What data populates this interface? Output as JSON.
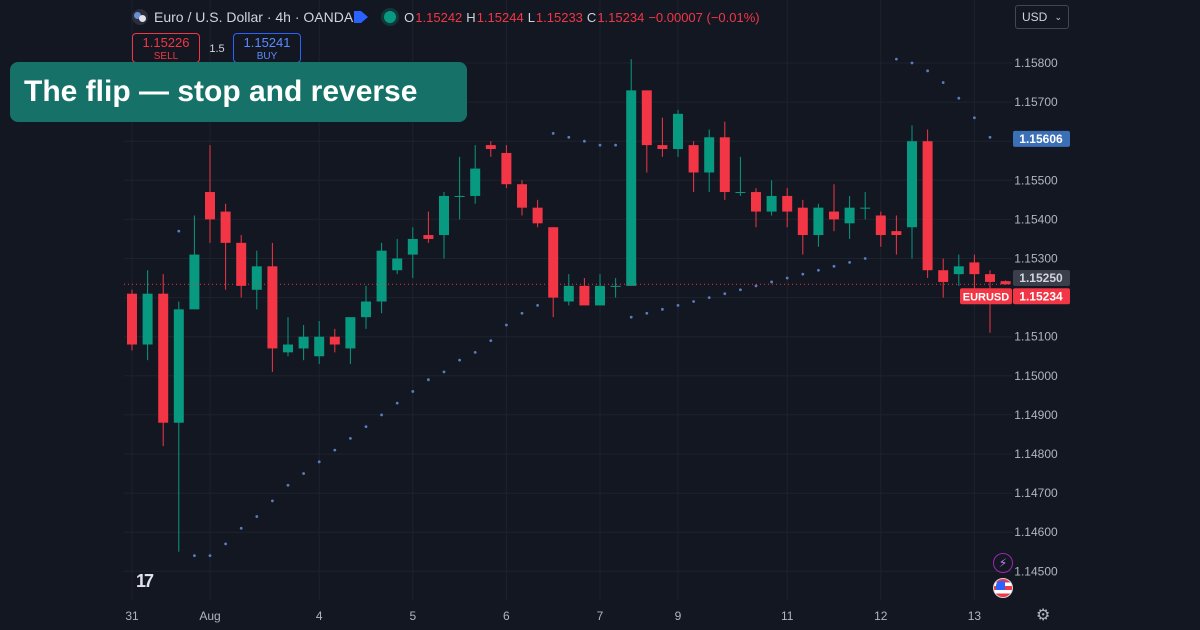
{
  "header": {
    "symbol": "Euro / U.S. Dollar · 4h · OANDA",
    "open_label": "O",
    "open": "1.15242",
    "high_label": "H",
    "high": "1.15244",
    "low_label": "L",
    "low": "1.15233",
    "close_label": "C",
    "close": "1.15234",
    "change": "−0.00007 (−0.01%)"
  },
  "currency_select": {
    "value": "USD"
  },
  "trade": {
    "sell_price": "1.15226",
    "sell_label": "SELL",
    "spread": "1.5",
    "buy_price": "1.15241",
    "buy_label": "BUY"
  },
  "overlay_title": "The flip  —  stop and reverse",
  "logo_text": "17",
  "colors": {
    "up": "#089981",
    "down": "#f23645",
    "background": "#131722",
    "sar": "#5b7dbd",
    "overlay": "#167268"
  },
  "chart_data": {
    "type": "candlestick",
    "title": "",
    "xlabel": "",
    "ylabel": "",
    "ylim": [
      1.1445,
      1.1583
    ],
    "y_ticks": [
      "1.14500",
      "1.14600",
      "1.14700",
      "1.14800",
      "1.14900",
      "1.15000",
      "1.15100",
      "1.15200",
      "1.15300",
      "1.15400",
      "1.15500",
      "1.15600",
      "1.15700",
      "1.15800"
    ],
    "x_tick_labels": [
      {
        "label": "31",
        "index": 0
      },
      {
        "label": "Aug",
        "index": 5
      },
      {
        "label": "4",
        "index": 12
      },
      {
        "label": "5",
        "index": 18
      },
      {
        "label": "6",
        "index": 24
      },
      {
        "label": "7",
        "index": 30
      },
      {
        "label": "9",
        "index": 35
      },
      {
        "label": "11",
        "index": 42
      },
      {
        "label": "12",
        "index": 48
      },
      {
        "label": "13",
        "index": 54
      }
    ],
    "grid": true,
    "candles": [
      {
        "o": 1.1521,
        "h": 1.1522,
        "l": 1.15065,
        "c": 1.1508
      },
      {
        "o": 1.1508,
        "h": 1.1527,
        "l": 1.1504,
        "c": 1.1521
      },
      {
        "o": 1.1521,
        "h": 1.1526,
        "l": 1.1482,
        "c": 1.1488
      },
      {
        "o": 1.1488,
        "h": 1.1519,
        "l": 1.1455,
        "c": 1.1517
      },
      {
        "o": 1.1517,
        "h": 1.1541,
        "l": 1.1517,
        "c": 1.1531
      },
      {
        "o": 1.1547,
        "h": 1.1559,
        "l": 1.1534,
        "c": 1.154
      },
      {
        "o": 1.1542,
        "h": 1.1544,
        "l": 1.1522,
        "c": 1.1534
      },
      {
        "o": 1.1534,
        "h": 1.1536,
        "l": 1.152,
        "c": 1.1523
      },
      {
        "o": 1.1522,
        "h": 1.1532,
        "l": 1.1517,
        "c": 1.1528
      },
      {
        "o": 1.1528,
        "h": 1.1534,
        "l": 1.1501,
        "c": 1.1507
      },
      {
        "o": 1.1506,
        "h": 1.1515,
        "l": 1.1505,
        "c": 1.1508
      },
      {
        "o": 1.1507,
        "h": 1.1513,
        "l": 1.1504,
        "c": 1.151
      },
      {
        "o": 1.1505,
        "h": 1.1514,
        "l": 1.1503,
        "c": 1.151
      },
      {
        "o": 1.151,
        "h": 1.1512,
        "l": 1.1506,
        "c": 1.1508
      },
      {
        "o": 1.1507,
        "h": 1.1514,
        "l": 1.1503,
        "c": 1.1515
      },
      {
        "o": 1.1515,
        "h": 1.1523,
        "l": 1.1512,
        "c": 1.1519
      },
      {
        "o": 1.1519,
        "h": 1.1534,
        "l": 1.1516,
        "c": 1.1532
      },
      {
        "o": 1.1527,
        "h": 1.1535,
        "l": 1.1526,
        "c": 1.153
      },
      {
        "o": 1.1531,
        "h": 1.1538,
        "l": 1.1525,
        "c": 1.1535
      },
      {
        "o": 1.1536,
        "h": 1.1542,
        "l": 1.1534,
        "c": 1.1535
      },
      {
        "o": 1.1536,
        "h": 1.1547,
        "l": 1.153,
        "c": 1.1546
      },
      {
        "o": 1.1546,
        "h": 1.1556,
        "l": 1.154,
        "c": 1.1546
      },
      {
        "o": 1.1546,
        "h": 1.1559,
        "l": 1.1544,
        "c": 1.1553
      },
      {
        "o": 1.1559,
        "h": 1.156,
        "l": 1.1556,
        "c": 1.1558
      },
      {
        "o": 1.1557,
        "h": 1.1559,
        "l": 1.1548,
        "c": 1.1549
      },
      {
        "o": 1.1549,
        "h": 1.155,
        "l": 1.1541,
        "c": 1.1543
      },
      {
        "o": 1.1543,
        "h": 1.1545,
        "l": 1.1538,
        "c": 1.1539
      },
      {
        "o": 1.1538,
        "h": 1.1538,
        "l": 1.1515,
        "c": 1.152
      },
      {
        "o": 1.1519,
        "h": 1.1526,
        "l": 1.1518,
        "c": 1.1523
      },
      {
        "o": 1.1523,
        "h": 1.1525,
        "l": 1.1518,
        "c": 1.1518
      },
      {
        "o": 1.1518,
        "h": 1.1526,
        "l": 1.1518,
        "c": 1.1523
      },
      {
        "o": 1.1523,
        "h": 1.1525,
        "l": 1.152,
        "c": 1.1523
      },
      {
        "o": 1.1523,
        "h": 1.1581,
        "l": 1.1523,
        "c": 1.1573
      },
      {
        "o": 1.1573,
        "h": 1.1573,
        "l": 1.1552,
        "c": 1.1559
      },
      {
        "o": 1.1559,
        "h": 1.1566,
        "l": 1.1556,
        "c": 1.1558
      },
      {
        "o": 1.1558,
        "h": 1.1568,
        "l": 1.1556,
        "c": 1.1567
      },
      {
        "o": 1.1559,
        "h": 1.156,
        "l": 1.1547,
        "c": 1.1552
      },
      {
        "o": 1.1552,
        "h": 1.1563,
        "l": 1.1547,
        "c": 1.1561
      },
      {
        "o": 1.1561,
        "h": 1.1565,
        "l": 1.1545,
        "c": 1.1547
      },
      {
        "o": 1.1547,
        "h": 1.1556,
        "l": 1.1546,
        "c": 1.1547
      },
      {
        "o": 1.1547,
        "h": 1.1548,
        "l": 1.1538,
        "c": 1.1542
      },
      {
        "o": 1.1542,
        "h": 1.155,
        "l": 1.1541,
        "c": 1.1546
      },
      {
        "o": 1.1546,
        "h": 1.1548,
        "l": 1.1538,
        "c": 1.1542
      },
      {
        "o": 1.1543,
        "h": 1.1545,
        "l": 1.1531,
        "c": 1.1536
      },
      {
        "o": 1.1536,
        "h": 1.1544,
        "l": 1.1533,
        "c": 1.1543
      },
      {
        "o": 1.1542,
        "h": 1.1549,
        "l": 1.1537,
        "c": 1.154
      },
      {
        "o": 1.1539,
        "h": 1.1546,
        "l": 1.1535,
        "c": 1.1543
      },
      {
        "o": 1.1543,
        "h": 1.1547,
        "l": 1.154,
        "c": 1.1543
      },
      {
        "o": 1.1541,
        "h": 1.1542,
        "l": 1.1533,
        "c": 1.1536
      },
      {
        "o": 1.1537,
        "h": 1.1541,
        "l": 1.1531,
        "c": 1.1536
      },
      {
        "o": 1.1538,
        "h": 1.1564,
        "l": 1.153,
        "c": 1.156
      },
      {
        "o": 1.156,
        "h": 1.1563,
        "l": 1.1525,
        "c": 1.1527
      },
      {
        "o": 1.1527,
        "h": 1.153,
        "l": 1.152,
        "c": 1.1524
      },
      {
        "o": 1.1526,
        "h": 1.1531,
        "l": 1.1523,
        "c": 1.1528
      },
      {
        "o": 1.1529,
        "h": 1.1531,
        "l": 1.1522,
        "c": 1.1526
      },
      {
        "o": 1.1526,
        "h": 1.1527,
        "l": 1.1511,
        "c": 1.1524
      },
      {
        "o": 1.15242,
        "h": 1.15244,
        "l": 1.15233,
        "c": 1.15234
      }
    ],
    "sar": [
      {
        "i": 3,
        "v": 1.1537
      },
      {
        "i": 4,
        "v": 1.1454
      },
      {
        "i": 5,
        "v": 1.1454
      },
      {
        "i": 6,
        "v": 1.1457
      },
      {
        "i": 7,
        "v": 1.1461
      },
      {
        "i": 8,
        "v": 1.1464
      },
      {
        "i": 9,
        "v": 1.1468
      },
      {
        "i": 10,
        "v": 1.1472
      },
      {
        "i": 11,
        "v": 1.1475
      },
      {
        "i": 12,
        "v": 1.1478
      },
      {
        "i": 13,
        "v": 1.1481
      },
      {
        "i": 14,
        "v": 1.1484
      },
      {
        "i": 15,
        "v": 1.1487
      },
      {
        "i": 16,
        "v": 1.149
      },
      {
        "i": 17,
        "v": 1.1493
      },
      {
        "i": 18,
        "v": 1.1496
      },
      {
        "i": 19,
        "v": 1.1499
      },
      {
        "i": 20,
        "v": 1.1501
      },
      {
        "i": 21,
        "v": 1.1504
      },
      {
        "i": 22,
        "v": 1.1506
      },
      {
        "i": 23,
        "v": 1.1509
      },
      {
        "i": 24,
        "v": 1.1513
      },
      {
        "i": 25,
        "v": 1.1516
      },
      {
        "i": 26,
        "v": 1.1518
      },
      {
        "i": 27,
        "v": 1.1562
      },
      {
        "i": 28,
        "v": 1.1561
      },
      {
        "i": 29,
        "v": 1.156
      },
      {
        "i": 30,
        "v": 1.1559
      },
      {
        "i": 31,
        "v": 1.1559
      },
      {
        "i": 32,
        "v": 1.1515
      },
      {
        "i": 33,
        "v": 1.1516
      },
      {
        "i": 34,
        "v": 1.1517
      },
      {
        "i": 35,
        "v": 1.1518
      },
      {
        "i": 36,
        "v": 1.1519
      },
      {
        "i": 37,
        "v": 1.152
      },
      {
        "i": 38,
        "v": 1.1521
      },
      {
        "i": 39,
        "v": 1.1522
      },
      {
        "i": 40,
        "v": 1.1523
      },
      {
        "i": 41,
        "v": 1.1524
      },
      {
        "i": 42,
        "v": 1.1525
      },
      {
        "i": 43,
        "v": 1.1526
      },
      {
        "i": 44,
        "v": 1.1527
      },
      {
        "i": 45,
        "v": 1.1528
      },
      {
        "i": 46,
        "v": 1.1529
      },
      {
        "i": 47,
        "v": 1.153
      },
      {
        "i": 49,
        "v": 1.1581
      },
      {
        "i": 50,
        "v": 1.158
      },
      {
        "i": 51,
        "v": 1.1578
      },
      {
        "i": 52,
        "v": 1.1575
      },
      {
        "i": 53,
        "v": 1.1571
      },
      {
        "i": 54,
        "v": 1.1566
      },
      {
        "i": 55,
        "v": 1.1561
      }
    ],
    "price_markers": [
      {
        "value": 1.15606,
        "label": "1.15606",
        "color": "#3b6fb6",
        "text_color": "#ffffff"
      },
      {
        "value": 1.1525,
        "label": "1.15250",
        "color": "#3b3f4c",
        "text_color": "#d1d4dc"
      },
      {
        "value": 1.15234,
        "label": "1.15234",
        "color": "#f23645",
        "text_color": "#ffffff",
        "tag": "EURUSD"
      }
    ],
    "current_price": 1.15234
  }
}
